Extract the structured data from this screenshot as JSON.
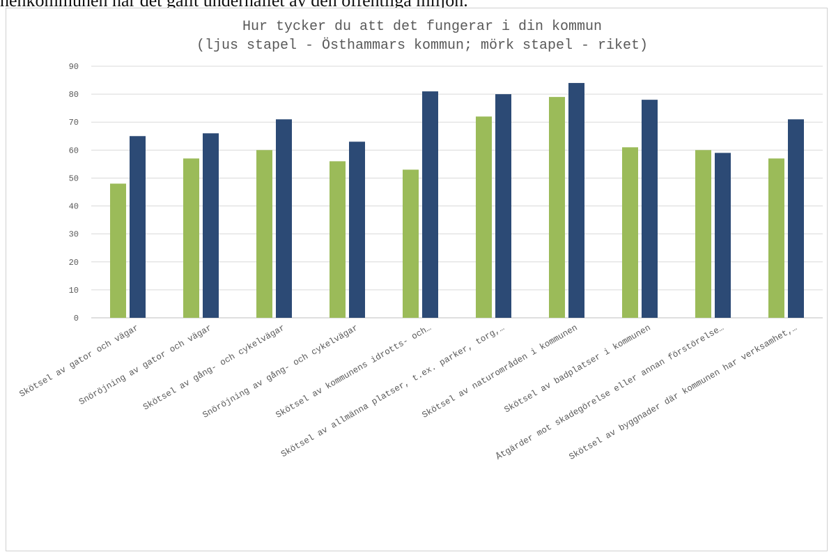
{
  "page": {
    "cut_text": "henkommunen har det gällt underhållet av den offentliga miljön."
  },
  "chart_data": {
    "type": "bar",
    "title": "Hur tycker du att det fungerar i din kommun",
    "subtitle": "(ljus stapel - Östhammars kommun; mörk stapel - riket)",
    "xlabel": "",
    "ylabel": "",
    "ylim": [
      0,
      90
    ],
    "yticks": [
      0,
      10,
      20,
      30,
      40,
      50,
      60,
      70,
      80,
      90
    ],
    "grid": true,
    "legend": "none",
    "categories": [
      "Skötsel av gator och vägar",
      "Snöröjning av gator och vägar",
      "Skötsel av gång- och cykelvägar",
      "Snöröjning av gång- och cykelvägar",
      "Skötsel av kommunens idrotts- och…",
      "Skötsel av allmänna platser, t.ex. parker, torg,…",
      "Skötsel av naturområden i kommunen",
      "Skötsel av badplatser i kommunen",
      "Åtgärder mot skadegörelse eller annan förstörelse…",
      "Skötsel av byggnader där kommunen har verksamhet,…"
    ],
    "series": [
      {
        "color": "#9bbb59",
        "values": [
          48,
          57,
          60,
          56,
          53,
          72,
          79,
          61,
          60,
          57
        ]
      },
      {
        "color": "#2c4a75",
        "values": [
          65,
          66,
          71,
          63,
          81,
          80,
          84,
          78,
          59,
          71
        ]
      }
    ],
    "colors": {
      "grid": "#d9d9d9",
      "axis": "#bfbfbf",
      "text": "#595959"
    }
  }
}
